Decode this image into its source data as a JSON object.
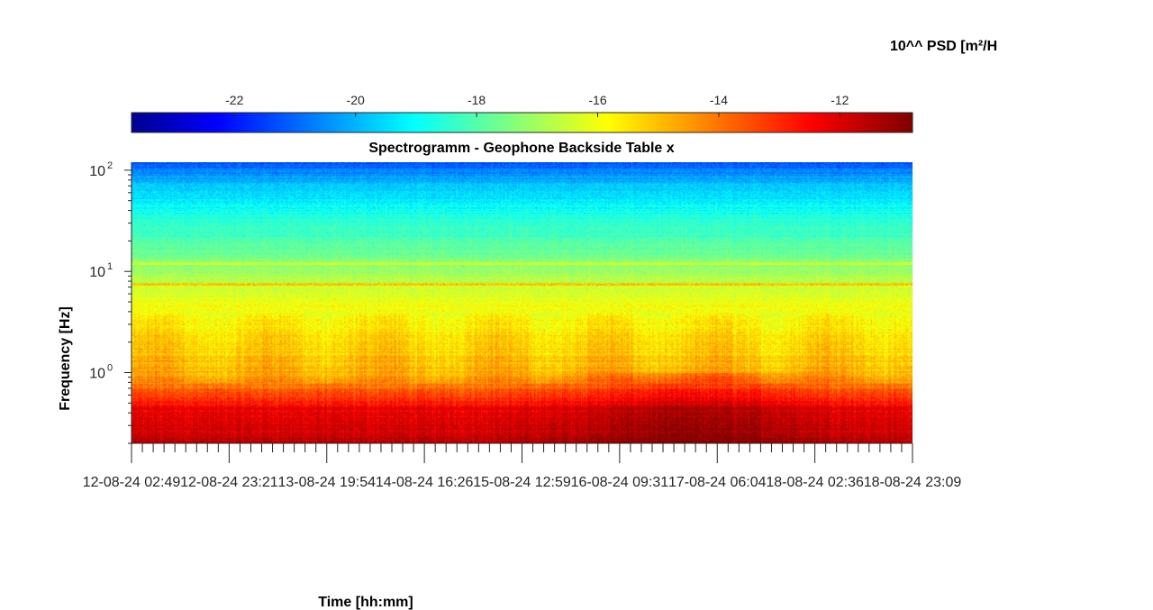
{
  "chart_data": {
    "type": "heatmap",
    "title": "Spectrogramm - Geophone Backside Table x",
    "xlabel": "Time [hh:mm]",
    "ylabel": "Frequency [Hz]",
    "y_scale": "log",
    "ylim": [
      0.2,
      120
    ],
    "y_ticks": [
      {
        "value": 1,
        "base": "10",
        "exp": "0"
      },
      {
        "value": 10,
        "base": "10",
        "exp": "1"
      },
      {
        "value": 100,
        "base": "10",
        "exp": "2"
      }
    ],
    "x_tick_labels": [
      "12-08-24  02:49",
      "12-08-24  23:21",
      "13-08-24  19:54",
      "14-08-24  16:26",
      "15-08-24  12:59",
      "16-08-24  09:31",
      "17-08-24  06:04",
      "18-08-24  02:36",
      "18-08-24  23:09"
    ],
    "colorbar": {
      "label": "10^^ PSD [m²/H",
      "ticks": [
        -22,
        -20,
        -18,
        -16,
        -14,
        -12
      ],
      "range": [
        -23.7,
        -10.8
      ],
      "colormap": "jet"
    },
    "profile": {
      "description_levels_by_log10_freq": [
        {
          "log10_f": -0.7,
          "log10_psd": -11.5
        },
        {
          "log10_f": -0.35,
          "log10_psd": -12.2
        },
        {
          "log10_f": -0.15,
          "log10_psd": -13.8
        },
        {
          "log10_f": 0.0,
          "log10_psd": -14.6
        },
        {
          "log10_f": 0.45,
          "log10_psd": -15.4
        },
        {
          "log10_f": 0.85,
          "log10_psd": -16.2
        },
        {
          "log10_f": 1.1,
          "log10_psd": -17.3
        },
        {
          "log10_f": 1.5,
          "log10_psd": -18.3
        },
        {
          "log10_f": 1.85,
          "log10_psd": -19.6
        },
        {
          "log10_f": 2.08,
          "log10_psd": -21.0
        }
      ],
      "line_frequencies_hz": [
        7.5,
        12
      ],
      "line_boost": [
        1.5,
        0.9
      ]
    }
  }
}
